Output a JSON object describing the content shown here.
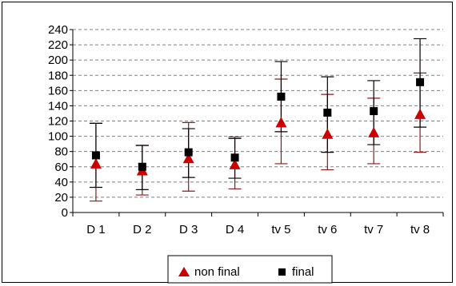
{
  "chart_data": {
    "type": "scatter",
    "title": "",
    "xlabel": "",
    "ylabel": "",
    "categories": [
      "D 1",
      "D 2",
      "D 3",
      "D 4",
      "tv 5",
      "tv 6",
      "tv 7",
      "tv 8"
    ],
    "ylim": [
      0,
      240
    ],
    "yticks": [
      0,
      20,
      40,
      60,
      80,
      100,
      120,
      140,
      160,
      180,
      200,
      220,
      240
    ],
    "grid": "horizontal dashed",
    "legend_position": "bottom",
    "series": [
      {
        "name": "non final",
        "marker": "triangle",
        "color": "#cc0000",
        "error_color": "#8b1a1a",
        "values": [
          64,
          55,
          71,
          63,
          118,
          103,
          105,
          129
        ],
        "low": [
          15,
          23,
          28,
          31,
          64,
          56,
          64,
          79
        ],
        "high": [
          117,
          88,
          118,
          99,
          175,
          155,
          150,
          183
        ]
      },
      {
        "name": "final",
        "marker": "square",
        "color": "#000000",
        "error_color": "#000000",
        "values": [
          75,
          60,
          79,
          72,
          152,
          131,
          133,
          171
        ],
        "low": [
          33,
          30,
          46,
          45,
          106,
          79,
          89,
          112
        ],
        "high": [
          117,
          88,
          110,
          97,
          198,
          178,
          173,
          228
        ]
      }
    ]
  }
}
